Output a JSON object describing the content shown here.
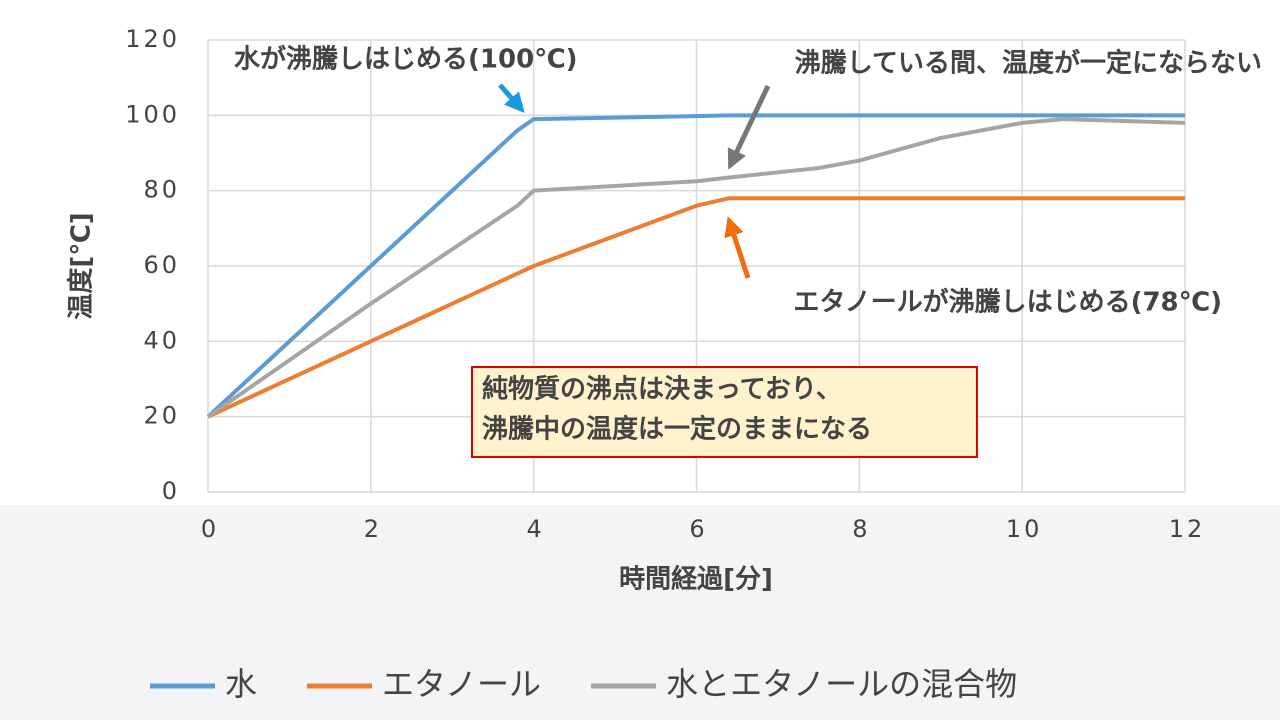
{
  "chart_data": {
    "type": "line",
    "x": [
      0,
      2,
      3.8,
      4,
      6,
      6.4,
      7.5,
      8,
      9,
      10,
      10.5,
      12
    ],
    "series": [
      {
        "name": "水",
        "color": "#5b9bd5",
        "values": [
          20,
          60,
          96,
          99,
          99.8,
          100,
          100,
          100,
          100,
          100,
          100,
          100
        ]
      },
      {
        "name": "エタノール",
        "color": "#ed7d31",
        "values": [
          20,
          40,
          58,
          60,
          76,
          78,
          78,
          78,
          78,
          78,
          78,
          78
        ]
      },
      {
        "name": "水とエタノールの混合物",
        "color": "#a5a5a5",
        "values": [
          20,
          50,
          76,
          80,
          82.5,
          83.5,
          86,
          88,
          94,
          98,
          99,
          98
        ]
      }
    ],
    "xlim": [
      0,
      12
    ],
    "xticks": [
      0,
      2,
      4,
      6,
      8,
      10,
      12
    ],
    "ylim": [
      0,
      120
    ],
    "yticks": [
      0,
      20,
      40,
      60,
      80,
      100,
      120
    ],
    "grid": true,
    "x_label": "時間経過[分]",
    "y_label": "温度[℃]",
    "annotations": [
      {
        "text": "水が沸騰しはじめる(100℃)",
        "color": "#1a9be0"
      },
      {
        "text": "沸騰している間、温度が一定にならない",
        "color": "#777777"
      },
      {
        "text": "エタノールが沸騰しはじめる(78℃)",
        "color": "#f26b0f"
      }
    ],
    "note": {
      "lines": [
        "純物質の沸点は決まっており、",
        "沸騰中の温度は一定のままになる"
      ],
      "color": "#e00000"
    },
    "legend": "bottom"
  }
}
